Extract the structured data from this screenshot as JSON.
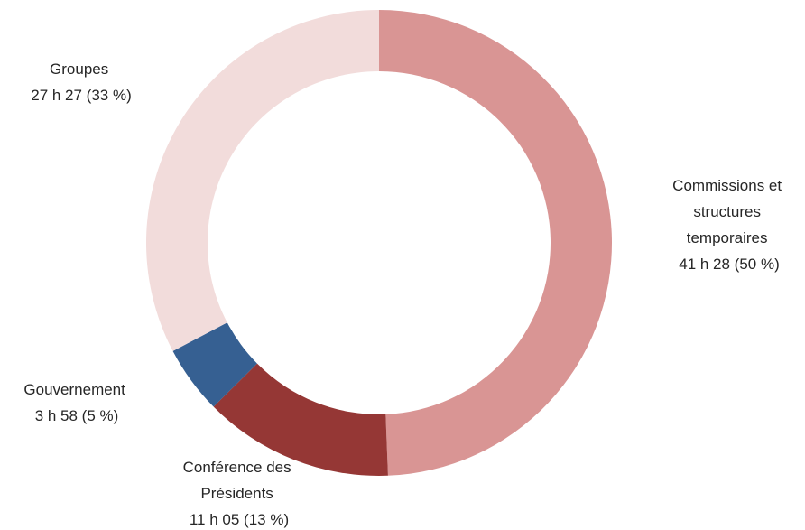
{
  "chart_data": {
    "type": "pie",
    "variant": "donut",
    "title": "",
    "legend": "none",
    "slices": [
      {
        "name": "Commissions et structures temporaires",
        "value": 41.47,
        "color": "#d99594",
        "label_lines": [
          "Commissions et",
          "structures",
          "temporaires",
          "41 h 28 (50 %)"
        ]
      },
      {
        "name": "Conférence des Présidents",
        "value": 11.08,
        "color": "#953735",
        "label_lines": [
          "Conférence des",
          "Présidents",
          "11 h 05 (13 %)"
        ]
      },
      {
        "name": "Gouvernement",
        "value": 3.97,
        "color": "#366092",
        "label_lines": [
          "Gouvernement",
          "3 h 58 (5 %)"
        ]
      },
      {
        "name": "Groupes",
        "value": 27.45,
        "color": "#f2dcdb",
        "label_lines": [
          "Groupes",
          "27 h 27 (33  %)"
        ]
      }
    ]
  }
}
